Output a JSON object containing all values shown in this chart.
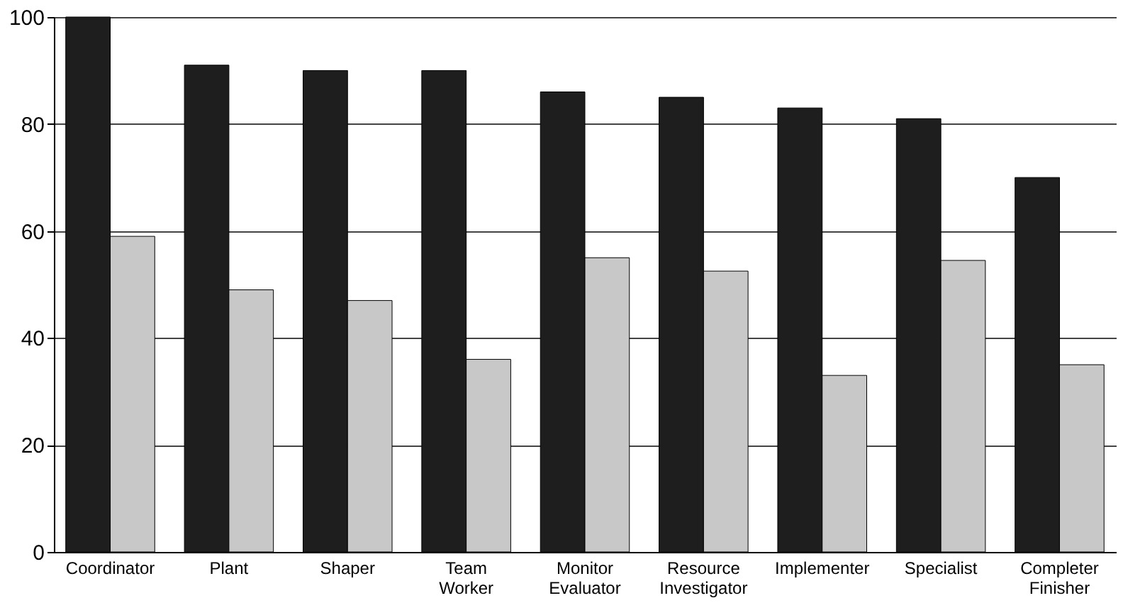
{
  "chart_data": {
    "type": "bar",
    "categories": [
      "Coordinator",
      "Plant",
      "Shaper",
      "Team Worker",
      "Monitor Evaluator",
      "Resource Investigator",
      "Implementer",
      "Specialist",
      "Completer Finisher"
    ],
    "series": [
      {
        "color": "#1e1e1e",
        "values": [
          100,
          91,
          90,
          90,
          86,
          85,
          83,
          81,
          70
        ]
      },
      {
        "color": "#c8c8c8",
        "values": [
          59,
          49,
          47,
          36,
          55,
          52.5,
          33,
          54.5,
          35
        ]
      }
    ],
    "ylim": [
      0,
      100
    ],
    "yticks": [
      0,
      20,
      40,
      60,
      80,
      100
    ],
    "grid": "y",
    "legend": false
  }
}
